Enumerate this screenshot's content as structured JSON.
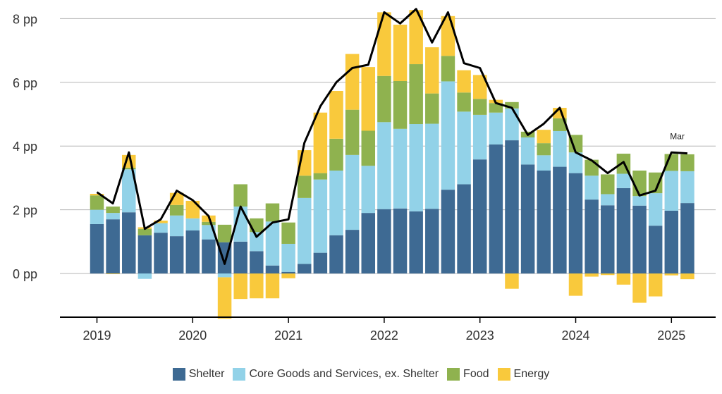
{
  "chart_data": {
    "type": "bar",
    "stacked": true,
    "y_unit": "pp",
    "ylim": [
      -1.4,
      8.5
    ],
    "yticks": [
      0,
      2,
      4,
      6,
      8
    ],
    "ytick_labels": [
      "0 pp",
      "2 pp",
      "4 pp",
      "6 pp",
      "8 pp"
    ],
    "xticks": [
      "2019",
      "2020",
      "2021",
      "2022",
      "2023",
      "2024",
      "2025"
    ],
    "x_start": "2019",
    "x_step_months": 2,
    "grid": "horizontal",
    "legend_position": "bottom",
    "annotation": "Mar",
    "series": [
      {
        "name": "Shelter",
        "color": "#3e6a93",
        "values": [
          1.55,
          1.7,
          1.92,
          1.2,
          1.28,
          1.17,
          1.35,
          1.07,
          0.98,
          1.0,
          0.7,
          0.25,
          0.05,
          0.3,
          0.65,
          1.2,
          1.37,
          1.9,
          2.02,
          2.04,
          1.95,
          2.03,
          2.63,
          2.8,
          3.58,
          4.05,
          4.18,
          3.42,
          3.23,
          3.35,
          3.15,
          2.32,
          2.14,
          2.68,
          2.13,
          1.5,
          1.97,
          2.21
        ]
      },
      {
        "name": "Core Goods and Services, ex. Shelter",
        "color": "#92d2e8",
        "values": [
          0.45,
          0.2,
          1.35,
          -0.17,
          0.3,
          0.65,
          0.38,
          0.45,
          -0.12,
          1.1,
          0.6,
          1.38,
          0.88,
          2.07,
          2.3,
          2.03,
          2.35,
          1.48,
          2.73,
          2.5,
          2.74,
          2.67,
          3.4,
          2.28,
          1.4,
          1.0,
          1.0,
          0.85,
          0.48,
          1.12,
          0.65,
          0.75,
          0.35,
          0.45,
          0.3,
          1.02,
          1.25,
          1.0
        ]
      },
      {
        "name": "Food",
        "color": "#8fb24f",
        "values": [
          0.45,
          0.2,
          0.05,
          0.2,
          0.0,
          0.33,
          0.0,
          0.1,
          0.55,
          0.7,
          0.43,
          0.57,
          0.67,
          0.7,
          0.2,
          1.0,
          1.42,
          1.1,
          1.45,
          1.5,
          1.88,
          0.95,
          0.8,
          0.6,
          0.5,
          0.3,
          0.2,
          0.18,
          0.38,
          0.4,
          0.55,
          0.5,
          0.62,
          0.63,
          0.8,
          0.65,
          0.53,
          0.53
        ]
      },
      {
        "name": "Energy",
        "color": "#f9c93c",
        "values": [
          0.05,
          -0.02,
          0.4,
          0.05,
          0.08,
          0.38,
          0.55,
          0.2,
          -1.3,
          -0.8,
          -0.78,
          -0.78,
          -0.15,
          0.8,
          1.9,
          1.5,
          1.75,
          2.0,
          2.0,
          1.77,
          1.7,
          1.45,
          1.25,
          0.7,
          0.75,
          0.1,
          -0.48,
          0.0,
          0.42,
          0.33,
          -0.7,
          -0.1,
          -0.05,
          -0.35,
          -0.92,
          -0.72,
          -0.06,
          -0.18
        ]
      },
      {
        "name": "Total",
        "type": "line",
        "color": "#000000",
        "values": [
          2.55,
          2.2,
          3.8,
          1.4,
          1.7,
          2.6,
          2.3,
          1.8,
          0.3,
          2.1,
          1.15,
          1.6,
          1.7,
          4.1,
          5.25,
          6.0,
          6.45,
          6.55,
          8.2,
          7.85,
          8.3,
          7.25,
          8.2,
          6.6,
          6.45,
          5.35,
          5.2,
          4.35,
          4.7,
          5.2,
          3.8,
          3.55,
          3.15,
          3.5,
          2.45,
          2.6,
          3.8,
          3.77
        ]
      }
    ]
  },
  "legend": [
    {
      "label": "Shelter",
      "color": "#3e6a93"
    },
    {
      "label": "Core Goods and Services, ex. Shelter",
      "color": "#92d2e8"
    },
    {
      "label": "Food",
      "color": "#8fb24f"
    },
    {
      "label": "Energy",
      "color": "#f9c93c"
    }
  ]
}
